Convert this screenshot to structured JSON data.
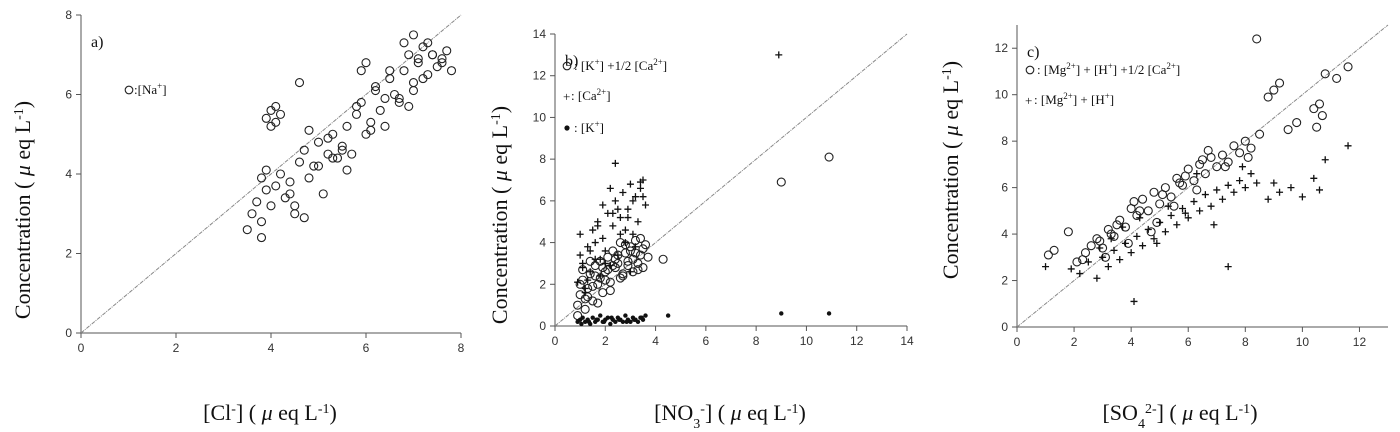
{
  "chart_data": [
    {
      "type": "scatter",
      "panel_label": "a)",
      "xlabel": "[Cl-] (μ eq L-1)",
      "ylabel": "Concentration (μ eq L-1)",
      "xlim": [
        0,
        8
      ],
      "ylim": [
        0,
        8
      ],
      "xticks": [
        0,
        2,
        4,
        6,
        8
      ],
      "yticks": [
        0,
        2,
        4,
        6,
        8
      ],
      "reference_line": "1:1",
      "grid": false,
      "legend_placement": "top-left",
      "series": [
        {
          "name": "○:[Na+]",
          "marker": "circle",
          "x": [
            3.5,
            3.6,
            3.7,
            3.8,
            3.9,
            3.8,
            4.0,
            4.1,
            4.2,
            3.9,
            4.3,
            4.4,
            4.5,
            4.6,
            4.7,
            4.8,
            4.9,
            5.0,
            5.1,
            5.2,
            5.3,
            5.4,
            5.5,
            5.6,
            5.7,
            5.8,
            5.9,
            6.0,
            6.1,
            6.2,
            6.3,
            6.4,
            6.5,
            6.6,
            6.7,
            6.8,
            6.9,
            7.0,
            7.1,
            7.2,
            7.3,
            7.4,
            7.5,
            7.6,
            7.7,
            7.8,
            3.9,
            4.0,
            4.1,
            4.2,
            4.0,
            4.1,
            4.6,
            4.8,
            5.0,
            5.2,
            5.5,
            5.8,
            6.0,
            6.2,
            6.5,
            6.8,
            7.0,
            7.2,
            7.4,
            7.6,
            7.0,
            6.9,
            7.1,
            7.3,
            4.7,
            4.5,
            5.6,
            5.9,
            6.4,
            3.8,
            4.4,
            5.3,
            6.1,
            6.7
          ],
          "y": [
            2.6,
            3.0,
            3.3,
            2.4,
            3.6,
            3.9,
            3.2,
            3.7,
            4.0,
            4.1,
            3.4,
            3.8,
            3.0,
            4.3,
            4.6,
            3.9,
            4.2,
            4.8,
            3.5,
            4.5,
            5.0,
            4.4,
            4.7,
            5.2,
            4.5,
            5.5,
            5.8,
            5.0,
            5.3,
            6.1,
            5.6,
            5.9,
            6.4,
            6.0,
            5.8,
            6.6,
            7.0,
            6.3,
            6.8,
            7.2,
            6.5,
            7.0,
            6.7,
            6.9,
            7.1,
            6.6,
            5.4,
            5.6,
            5.3,
            5.5,
            5.2,
            5.7,
            6.3,
            5.1,
            4.2,
            4.9,
            4.6,
            5.7,
            6.8,
            6.2,
            6.6,
            7.3,
            7.5,
            6.4,
            7.0,
            6.8,
            6.1,
            5.7,
            6.9,
            7.3,
            2.9,
            3.2,
            4.1,
            6.6,
            5.2,
            2.8,
            3.5,
            4.4,
            5.1,
            5.9
          ]
        }
      ]
    },
    {
      "type": "scatter",
      "panel_label": "b)",
      "xlabel": "[NO3-] (μ eq L-1)",
      "ylabel": "Concentration (μ eq L-1)",
      "xlim": [
        0,
        14
      ],
      "ylim": [
        0,
        14
      ],
      "xticks": [
        0,
        2,
        4,
        6,
        8,
        10,
        12,
        14
      ],
      "yticks": [
        0,
        2,
        4,
        6,
        8,
        10,
        12,
        14
      ],
      "reference_line": "1:1",
      "grid": false,
      "legend_placement": "top-left",
      "series": [
        {
          "name": "○: [K+] +1/2 [Ca2+]",
          "marker": "circle",
          "x": [
            0.9,
            1.0,
            1.1,
            1.2,
            1.3,
            1.4,
            1.5,
            1.6,
            1.7,
            1.8,
            1.9,
            2.0,
            2.1,
            2.2,
            2.3,
            2.4,
            2.5,
            2.6,
            2.7,
            2.8,
            2.9,
            3.0,
            3.1,
            3.2,
            3.3,
            3.4,
            3.5,
            3.6,
            3.7,
            1.2,
            1.5,
            1.8,
            2.1,
            2.4,
            2.7,
            3.0,
            3.3,
            1.0,
            1.3,
            1.6,
            1.9,
            2.2,
            2.5,
            2.8,
            3.1,
            3.4,
            4.3,
            9.0,
            10.9,
            0.9,
            1.1,
            1.4,
            1.7,
            2.0,
            2.3,
            2.6,
            2.9,
            3.2,
            3.5
          ],
          "y": [
            1.0,
            1.5,
            2.2,
            0.8,
            1.8,
            2.5,
            1.2,
            2.9,
            2.0,
            3.1,
            1.6,
            2.6,
            3.3,
            2.1,
            3.6,
            2.8,
            3.0,
            4.0,
            2.4,
            3.5,
            2.9,
            3.8,
            3.2,
            4.1,
            2.7,
            3.4,
            3.7,
            3.9,
            3.3,
            1.3,
            1.9,
            2.3,
            2.7,
            3.2,
            2.5,
            3.6,
            3.0,
            2.0,
            1.4,
            2.4,
            2.8,
            1.7,
            3.4,
            3.9,
            2.6,
            4.2,
            3.2,
            6.9,
            8.1,
            0.5,
            2.7,
            3.1,
            1.1,
            2.2,
            2.9,
            2.3,
            3.1,
            3.5,
            2.8
          ]
        },
        {
          "name": "+: [Ca2+]",
          "marker": "plus",
          "x": [
            0.9,
            1.0,
            1.1,
            1.2,
            1.3,
            1.4,
            1.5,
            1.6,
            1.7,
            1.8,
            1.9,
            2.0,
            2.1,
            2.2,
            2.3,
            2.4,
            2.5,
            2.6,
            2.7,
            2.8,
            2.9,
            3.0,
            3.1,
            3.2,
            3.3,
            3.4,
            3.5,
            3.6,
            1.0,
            1.3,
            1.6,
            1.9,
            2.2,
            2.5,
            2.8,
            3.1,
            3.4,
            1.1,
            1.4,
            1.7,
            2.0,
            2.3,
            2.6,
            2.9,
            3.2,
            3.5,
            1.2,
            1.8,
            2.4,
            3.0,
            8.9
          ],
          "y": [
            2.1,
            4.4,
            3.0,
            1.8,
            3.8,
            2.6,
            4.6,
            3.2,
            5.0,
            2.4,
            4.2,
            3.6,
            5.4,
            2.9,
            4.8,
            6.0,
            3.4,
            5.2,
            6.4,
            4.0,
            5.6,
            6.8,
            4.4,
            6.2,
            5.0,
            6.6,
            7.0,
            5.8,
            3.4,
            2.2,
            4.0,
            5.8,
            6.6,
            5.6,
            4.6,
            6.0,
            6.9,
            2.8,
            3.6,
            4.8,
            3.0,
            5.4,
            4.4,
            5.2,
            3.8,
            6.2,
            1.6,
            3.2,
            7.8,
            2.6,
            13.0
          ]
        },
        {
          "name": "•: [K+]",
          "marker": "filled",
          "x": [
            0.9,
            1.0,
            1.1,
            1.2,
            1.3,
            1.4,
            1.5,
            1.6,
            1.7,
            1.8,
            1.9,
            2.0,
            2.1,
            2.2,
            2.3,
            2.4,
            2.5,
            2.6,
            2.7,
            2.8,
            2.9,
            3.0,
            3.1,
            3.2,
            3.3,
            3.4,
            3.5,
            3.6,
            1.05,
            1.35,
            1.65,
            1.95,
            2.25,
            2.55,
            2.85,
            3.15,
            3.45,
            4.5,
            9.0,
            10.9
          ],
          "y": [
            0.2,
            0.3,
            0.4,
            0.2,
            0.3,
            0.1,
            0.4,
            0.2,
            0.3,
            0.5,
            0.2,
            0.3,
            0.4,
            0.1,
            0.3,
            0.2,
            0.4,
            0.3,
            0.2,
            0.5,
            0.3,
            0.2,
            0.4,
            0.3,
            0.2,
            0.4,
            0.3,
            0.5,
            0.1,
            0.2,
            0.3,
            0.2,
            0.4,
            0.3,
            0.2,
            0.3,
            0.4,
            0.5,
            0.6,
            0.6
          ]
        }
      ]
    },
    {
      "type": "scatter",
      "panel_label": "c)",
      "xlabel": "[SO42-] (μ eq L-1)",
      "ylabel": "Concentration (μ eq L-1)",
      "xlim": [
        0,
        13
      ],
      "ylim": [
        0,
        13
      ],
      "xticks": [
        0,
        2,
        4,
        6,
        8,
        10,
        12
      ],
      "yticks": [
        0,
        2,
        4,
        6,
        8,
        10,
        12
      ],
      "reference_line": "1:1",
      "grid": false,
      "legend_placement": "top-left",
      "series": [
        {
          "name": "○: [Mg2+] + [H+] +1/2 [Ca2+]",
          "marker": "circle",
          "x": [
            1.1,
            1.3,
            1.8,
            2.1,
            2.4,
            2.6,
            2.8,
            3.0,
            3.2,
            3.4,
            3.6,
            3.8,
            4.0,
            4.2,
            4.4,
            4.6,
            4.8,
            5.0,
            5.2,
            5.4,
            5.6,
            5.8,
            6.0,
            6.2,
            6.4,
            6.6,
            6.8,
            7.0,
            7.2,
            7.4,
            7.6,
            7.8,
            8.0,
            8.2,
            8.5,
            8.8,
            9.0,
            9.2,
            9.8,
            10.4,
            10.6,
            10.8,
            11.2,
            11.6,
            8.4,
            3.1,
            3.5,
            3.9,
            4.3,
            4.7,
            5.1,
            5.5,
            5.9,
            6.3,
            6.7,
            2.3,
            2.9,
            3.3,
            4.1,
            4.9,
            5.7,
            6.5,
            7.3,
            8.1,
            9.5,
            10.5,
            10.7
          ],
          "y": [
            3.1,
            3.3,
            4.1,
            2.8,
            3.2,
            3.5,
            3.8,
            3.4,
            4.2,
            3.9,
            4.6,
            4.3,
            5.1,
            4.8,
            5.5,
            5.0,
            5.8,
            5.3,
            6.0,
            5.6,
            6.4,
            6.1,
            6.8,
            6.3,
            7.0,
            6.6,
            7.3,
            6.9,
            7.4,
            7.1,
            7.8,
            7.5,
            8.0,
            7.7,
            8.3,
            9.9,
            10.2,
            10.5,
            8.8,
            9.4,
            9.6,
            10.9,
            10.7,
            11.2,
            12.4,
            3.0,
            4.4,
            3.6,
            5.0,
            4.1,
            5.7,
            5.2,
            6.5,
            5.9,
            7.6,
            2.9,
            3.7,
            4.0,
            5.4,
            4.5,
            6.2,
            7.2,
            6.9,
            7.3,
            8.5,
            8.6,
            9.1
          ]
        },
        {
          "name": "+: [Mg2+] + [H+]",
          "marker": "plus",
          "x": [
            1.0,
            1.9,
            2.2,
            2.5,
            2.8,
            3.0,
            3.2,
            3.4,
            3.6,
            3.8,
            4.0,
            4.2,
            4.4,
            4.6,
            4.8,
            5.0,
            5.2,
            5.4,
            5.6,
            5.8,
            6.0,
            6.2,
            6.4,
            6.6,
            6.8,
            7.0,
            7.2,
            7.4,
            7.6,
            7.8,
            8.0,
            8.2,
            8.4,
            8.8,
            9.2,
            9.6,
            10.0,
            10.4,
            10.6,
            10.8,
            11.6,
            4.1,
            7.4,
            2.9,
            3.3,
            3.7,
            4.3,
            4.9,
            5.3,
            5.9,
            6.3,
            6.9,
            7.9,
            9.0
          ],
          "y": [
            2.6,
            2.5,
            2.3,
            2.8,
            2.1,
            3.0,
            2.6,
            3.3,
            2.9,
            3.6,
            3.2,
            3.9,
            3.5,
            4.2,
            3.8,
            4.5,
            4.1,
            4.8,
            4.4,
            5.1,
            4.7,
            5.4,
            5.0,
            5.7,
            5.2,
            5.9,
            5.5,
            6.1,
            5.8,
            6.3,
            6.0,
            6.6,
            6.2,
            5.5,
            5.8,
            6.0,
            5.6,
            6.4,
            5.9,
            7.2,
            7.8,
            1.1,
            2.6,
            3.4,
            3.8,
            4.3,
            4.7,
            3.6,
            5.2,
            4.9,
            6.6,
            4.4,
            6.9,
            6.2
          ]
        }
      ]
    }
  ]
}
